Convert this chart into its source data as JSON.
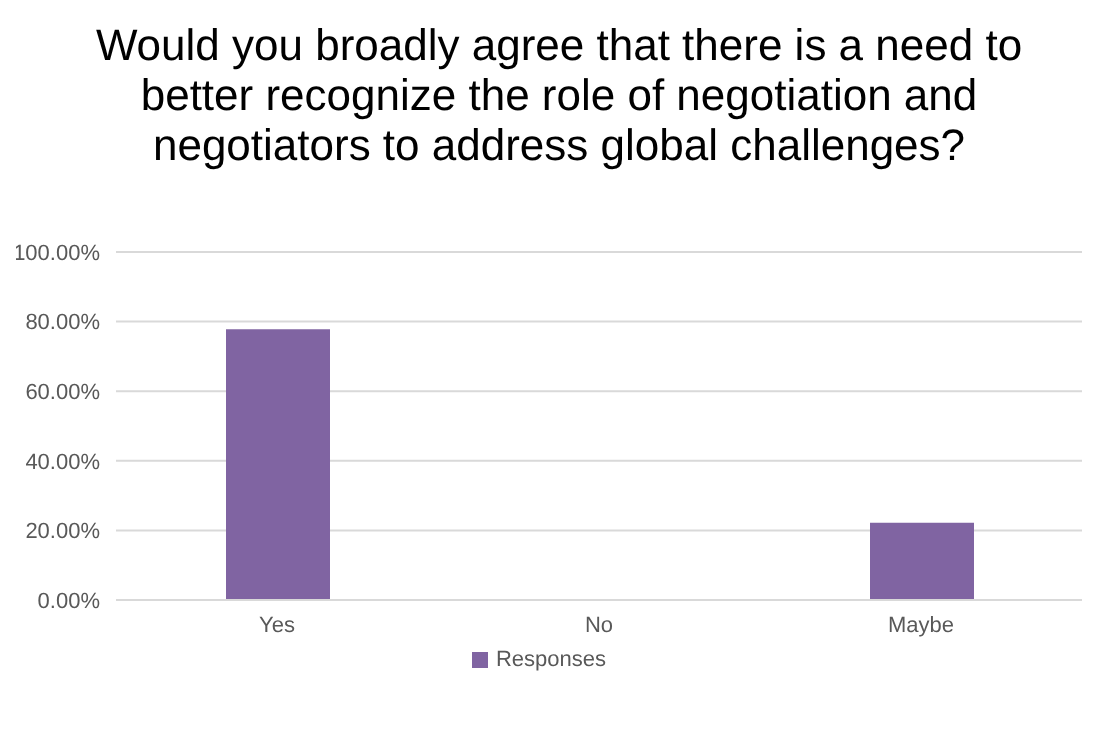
{
  "chart_data": {
    "type": "bar",
    "title": "Would you broadly agree that there is a need to better recognize the role of negotiation and negotiators to address global challenges?",
    "categories": [
      "Yes",
      "No",
      "Maybe"
    ],
    "series": [
      {
        "name": "Responses",
        "color": "#8064a2",
        "values": [
          77.8,
          0,
          22.2
        ]
      }
    ],
    "ylim": [
      0,
      100
    ],
    "yticks": [
      {
        "value": 0,
        "label": "0.00%"
      },
      {
        "value": 20,
        "label": "20.00%"
      },
      {
        "value": 40,
        "label": "40.00%"
      },
      {
        "value": 60,
        "label": "60.00%"
      },
      {
        "value": 80,
        "label": "80.00%"
      },
      {
        "value": 100,
        "label": "100.00%"
      }
    ],
    "grid": "y",
    "legend": "bottom"
  }
}
